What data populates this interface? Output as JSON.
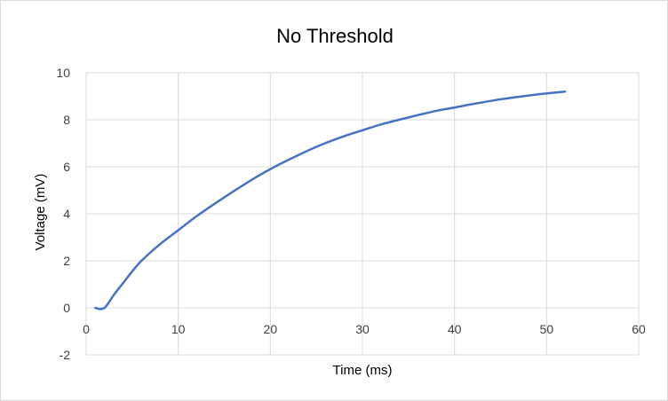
{
  "chart_data": {
    "type": "line",
    "title": "No Threshold",
    "xlabel": "Time (ms)",
    "ylabel": "Voltage (mV)",
    "xlim": [
      0,
      60
    ],
    "ylim": [
      -2,
      10
    ],
    "x_ticks": [
      0,
      10,
      20,
      30,
      40,
      50,
      60
    ],
    "y_ticks": [
      -2,
      0,
      2,
      4,
      6,
      8,
      10
    ],
    "grid": true,
    "series": [
      {
        "color": "#4472c4",
        "x": [
          1,
          1.5,
          2,
          2.5,
          3,
          4,
          5,
          6,
          8,
          10,
          12,
          15,
          18,
          20,
          22,
          25,
          28,
          30,
          32,
          35,
          38,
          40,
          42,
          45,
          48,
          50,
          52
        ],
        "y": [
          0.0,
          -0.05,
          0.0,
          0.25,
          0.55,
          1.05,
          1.55,
          2.0,
          2.7,
          3.3,
          3.9,
          4.7,
          5.45,
          5.9,
          6.3,
          6.85,
          7.3,
          7.55,
          7.8,
          8.1,
          8.38,
          8.52,
          8.67,
          8.87,
          9.03,
          9.12,
          9.2
        ]
      }
    ]
  }
}
